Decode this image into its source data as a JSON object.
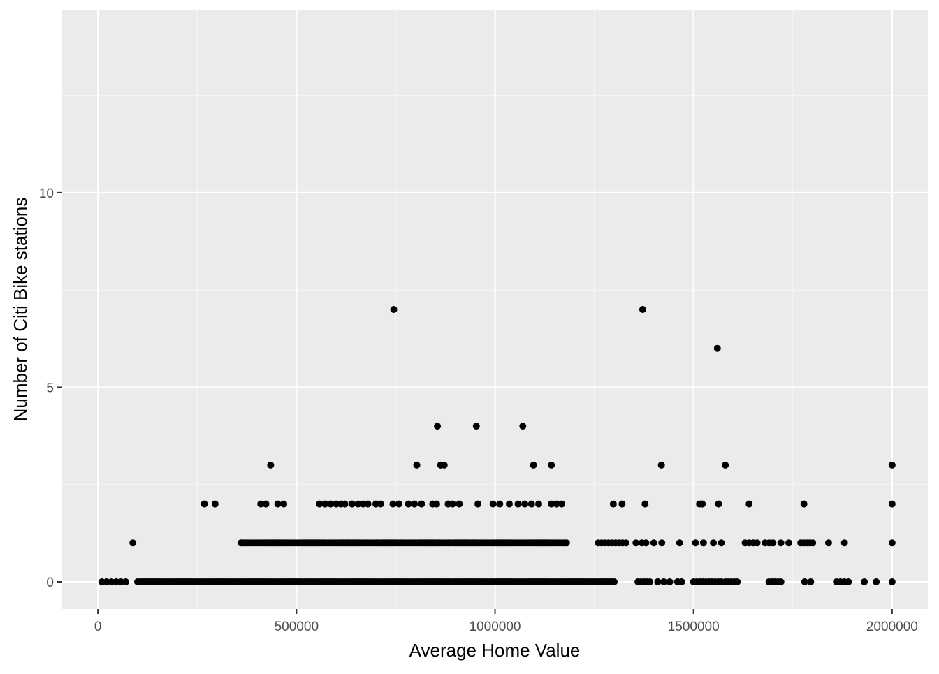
{
  "chart_data": {
    "type": "scatter",
    "title": "",
    "xlabel": "Average Home Value",
    "ylabel": "Number of Citi Bike stations",
    "xlim": [
      -90000,
      2090000
    ],
    "ylim": [
      -0.7,
      14.7
    ],
    "x_ticks": [
      0,
      500000,
      1000000,
      1500000,
      2000000
    ],
    "x_tick_labels": [
      "0",
      "500000",
      "1000000",
      "1500000",
      "2000000"
    ],
    "y_ticks": [
      0,
      5,
      10
    ],
    "y_tick_labels": [
      "0",
      "5",
      "10"
    ],
    "grid": true,
    "legend": "none",
    "colors": {
      "panel": "#EBEBEB",
      "grid_major": "#FFFFFF",
      "grid_minor": "#F5F5F5",
      "point": "#000000",
      "tick_text": "#4D4D4D",
      "axis_title": "#000000"
    },
    "series": [
      {
        "y": 0,
        "x_ranges": [
          [
            10000,
            70000,
            6
          ],
          [
            100000,
            1300000,
            220
          ],
          [
            1360000,
            1390000,
            5
          ],
          [
            1410000,
            1440000,
            3
          ],
          [
            1460000,
            1470000,
            2
          ],
          [
            1500000,
            1570000,
            10
          ],
          [
            1580000,
            1610000,
            5
          ],
          [
            1690000,
            1720000,
            5
          ],
          [
            1860000,
            1890000,
            4
          ]
        ],
        "x": [
          1410000,
          1460000,
          1780000,
          1795000,
          1930000,
          1960000,
          2000000
        ]
      },
      {
        "y": 1,
        "x_ranges": [
          [
            360000,
            1180000,
            150
          ],
          [
            1260000,
            1330000,
            9
          ],
          [
            1640000,
            1660000,
            3
          ],
          [
            1680000,
            1700000,
            3
          ],
          [
            1770000,
            1800000,
            5
          ]
        ],
        "x": [
          88000,
          1355000,
          1370000,
          1380000,
          1400000,
          1420000,
          1465000,
          1505000,
          1525000,
          1550000,
          1570000,
          1630000,
          1720000,
          1740000,
          1840000,
          1880000,
          2000000
        ]
      },
      {
        "y": 2,
        "x": [
          268000,
          295000,
          410000,
          423000,
          453000,
          468000,
          558000,
          572000,
          586000,
          600000,
          612000,
          622000,
          640000,
          655000,
          668000,
          680000,
          700000,
          712000,
          743000,
          758000,
          782000,
          797000,
          815000,
          843000,
          853000,
          882000,
          893000,
          910000,
          957000,
          995000,
          1012000,
          1036000,
          1058000,
          1075000,
          1092000,
          1110000,
          1142000,
          1155000,
          1168000,
          1298000,
          1320000,
          1378000,
          1515000,
          1522000,
          1563000,
          1640000,
          1778000,
          2000000
        ]
      },
      {
        "y": 3,
        "x": [
          435000,
          803000,
          863000,
          872000,
          1097000,
          1142000,
          1419000,
          1580000,
          2000000
        ]
      },
      {
        "y": 4,
        "x": [
          855000,
          953000,
          1070000
        ]
      },
      {
        "y": 6,
        "x": [
          1560000
        ]
      },
      {
        "y": 7,
        "x": [
          745000,
          1372000
        ]
      }
    ]
  }
}
